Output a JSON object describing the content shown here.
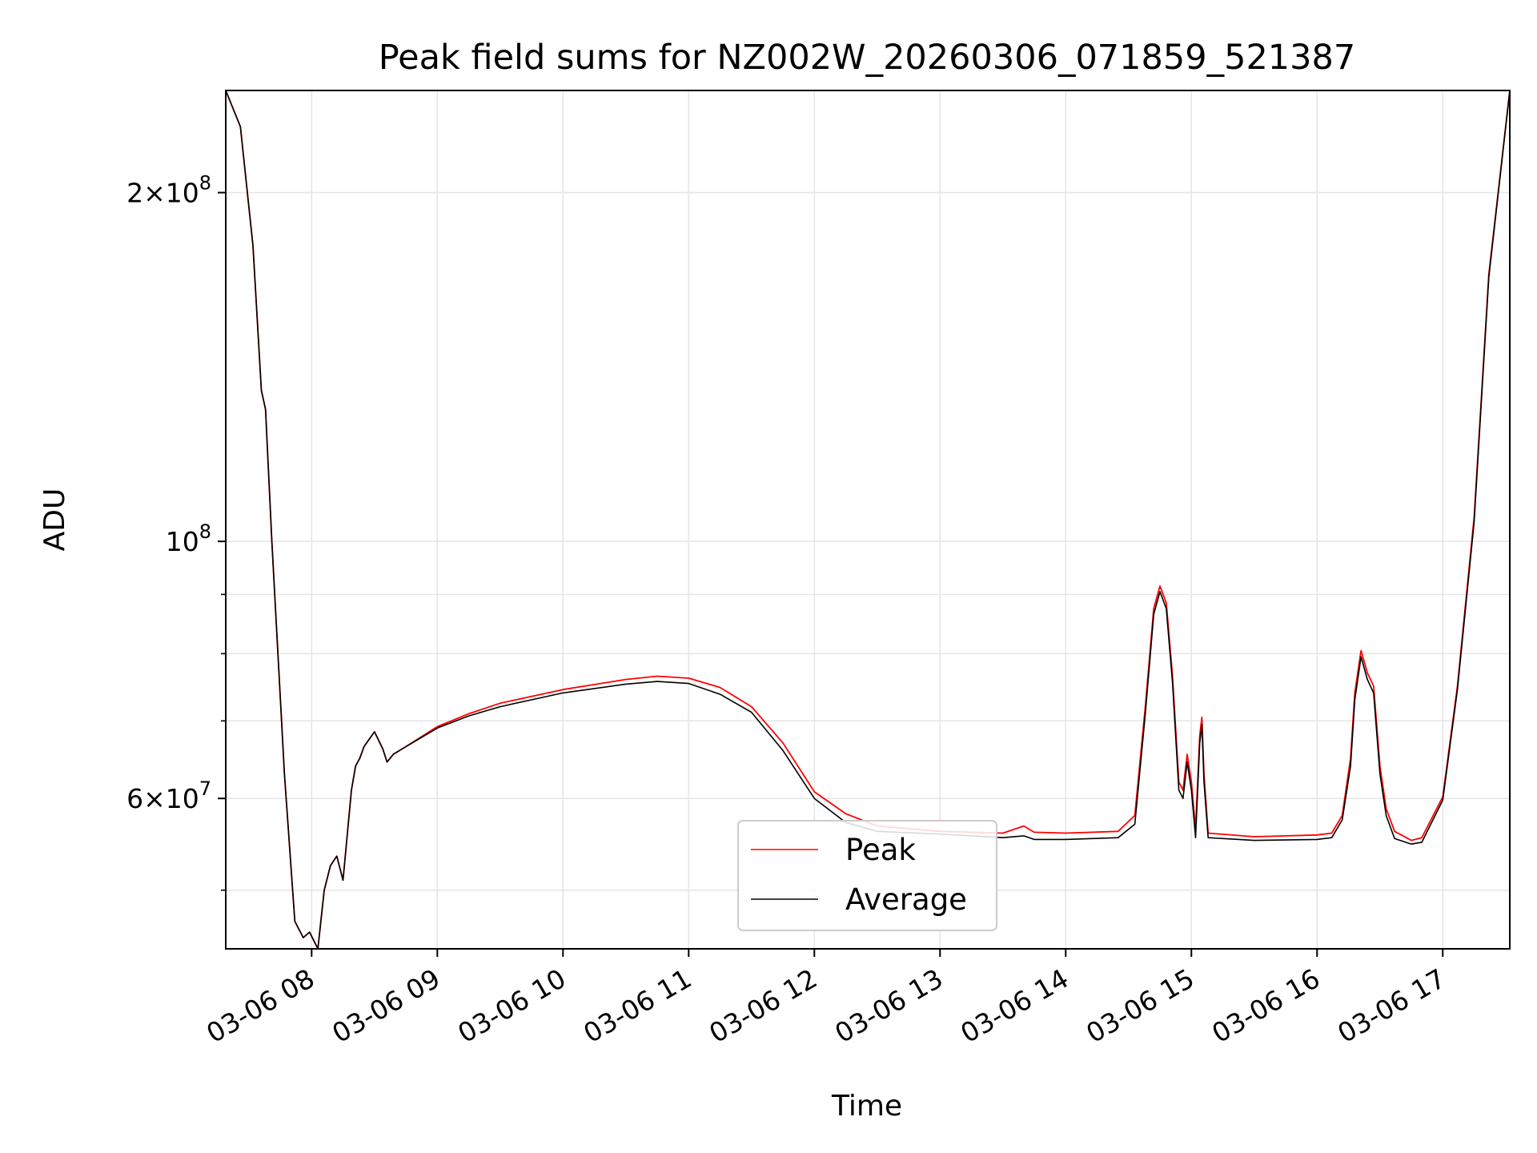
{
  "chart_data": {
    "type": "line",
    "title": "Peak field sums for NZ002W_20260306_071859_521387",
    "xlabel": "Time",
    "ylabel": "ADU",
    "yscale": "log",
    "ylim": [
      44500000,
      245000000
    ],
    "xlim": [
      "2026-03-06 07:19",
      "2026-03-06 17:32"
    ],
    "grid": true,
    "legend_position": "lower-center",
    "x_ticks": [
      "03-06 08",
      "03-06 09",
      "03-06 10",
      "03-06 11",
      "03-06 12",
      "03-06 13",
      "03-06 14",
      "03-06 15",
      "03-06 16",
      "03-06 17"
    ],
    "y_ticks_major": [
      {
        "value": 200000000,
        "mantissa": "2",
        "exponent": "8"
      },
      {
        "value": 100000000,
        "mantissa": "",
        "exponent": "8"
      },
      {
        "value": 60000000,
        "mantissa": "6",
        "exponent": "7"
      }
    ],
    "y_ticks_minor": [
      50000000,
      70000000,
      80000000,
      90000000
    ],
    "series": [
      {
        "name": "Peak",
        "color": "#ff0000"
      },
      {
        "name": "Average",
        "color": "#000000"
      }
    ],
    "x": [
      "2026-03-06 07:19",
      "2026-03-06 07:26",
      "2026-03-06 07:32",
      "2026-03-06 07:36",
      "2026-03-06 07:38",
      "2026-03-06 07:41",
      "2026-03-06 07:47",
      "2026-03-06 07:52",
      "2026-03-06 07:56",
      "2026-03-06 07:59",
      "2026-03-06 08:03",
      "2026-03-06 08:06",
      "2026-03-06 08:09",
      "2026-03-06 08:12",
      "2026-03-06 08:15",
      "2026-03-06 08:19",
      "2026-03-06 08:21",
      "2026-03-06 08:23",
      "2026-03-06 08:25",
      "2026-03-06 08:30",
      "2026-03-06 08:34",
      "2026-03-06 08:36",
      "2026-03-06 08:39",
      "2026-03-06 08:45",
      "2026-03-06 09:00",
      "2026-03-06 09:15",
      "2026-03-06 09:30",
      "2026-03-06 10:00",
      "2026-03-06 10:30",
      "2026-03-06 10:45",
      "2026-03-06 11:00",
      "2026-03-06 11:15",
      "2026-03-06 11:30",
      "2026-03-06 11:45",
      "2026-03-06 12:00",
      "2026-03-06 12:15",
      "2026-03-06 12:30",
      "2026-03-06 13:00",
      "2026-03-06 13:30",
      "2026-03-06 13:40",
      "2026-03-06 13:45",
      "2026-03-06 14:00",
      "2026-03-06 14:25",
      "2026-03-06 14:33",
      "2026-03-06 14:38",
      "2026-03-06 14:42",
      "2026-03-06 14:45",
      "2026-03-06 14:48",
      "2026-03-06 14:51",
      "2026-03-06 14:54",
      "2026-03-06 14:56",
      "2026-03-06 14:58",
      "2026-03-06 15:00",
      "2026-03-06 15:02",
      "2026-03-06 15:04",
      "2026-03-06 15:05",
      "2026-03-06 15:06",
      "2026-03-06 15:08",
      "2026-03-06 15:30",
      "2026-03-06 16:00",
      "2026-03-06 16:07",
      "2026-03-06 16:12",
      "2026-03-06 16:16",
      "2026-03-06 16:18",
      "2026-03-06 16:21",
      "2026-03-06 16:24",
      "2026-03-06 16:27",
      "2026-03-06 16:30",
      "2026-03-06 16:33",
      "2026-03-06 16:37",
      "2026-03-06 16:45",
      "2026-03-06 16:50",
      "2026-03-06 17:00",
      "2026-03-06 17:07",
      "2026-03-06 17:15",
      "2026-03-06 17:22",
      "2026-03-06 17:32"
    ],
    "peak": [
      245000000,
      228000000,
      180000000,
      135000000,
      130000000,
      100000000,
      63000000,
      47000000,
      45500000,
      46000000,
      44500000,
      50000000,
      52500000,
      53500000,
      51000000,
      61000000,
      64000000,
      65000000,
      66500000,
      68500000,
      66200000,
      64500000,
      65500000,
      66500000,
      69200000,
      71000000,
      72500000,
      74500000,
      76000000,
      76500000,
      76200000,
      74800000,
      72000000,
      67000000,
      60800000,
      58200000,
      56800000,
      56200000,
      56000000,
      56800000,
      56100000,
      56000000,
      56200000,
      58000000,
      72000000,
      87500000,
      91500000,
      88500000,
      76500000,
      62000000,
      61000000,
      65500000,
      62000000,
      56500000,
      68000000,
      70500000,
      63000000,
      56000000,
      55600000,
      55800000,
      56000000,
      58000000,
      65000000,
      74000000,
      80500000,
      77000000,
      75000000,
      64000000,
      58800000,
      56200000,
      55200000,
      55500000,
      60200000,
      75000000,
      105000000,
      170000000,
      245000000
    ],
    "average": [
      245000000,
      228000000,
      180000000,
      135000000,
      130000000,
      100000000,
      63000000,
      47000000,
      45500000,
      46000000,
      44500000,
      50000000,
      52500000,
      53500000,
      51000000,
      61000000,
      64000000,
      65000000,
      66500000,
      68500000,
      66200000,
      64500000,
      65500000,
      66500000,
      69000000,
      70700000,
      72000000,
      74000000,
      75300000,
      75700000,
      75400000,
      73800000,
      71200000,
      66000000,
      60000000,
      57200000,
      56200000,
      55900000,
      55500000,
      55700000,
      55300000,
      55300000,
      55500000,
      57000000,
      71000000,
      86500000,
      90500000,
      87500000,
      75500000,
      61000000,
      60000000,
      64500000,
      61000000,
      55500000,
      67000000,
      69500000,
      62000000,
      55500000,
      55200000,
      55300000,
      55500000,
      57500000,
      64000000,
      73000000,
      79500000,
      76000000,
      74000000,
      63000000,
      58000000,
      55400000,
      54800000,
      55000000,
      59800000,
      74500000,
      104000000,
      169000000,
      245000000
    ]
  }
}
